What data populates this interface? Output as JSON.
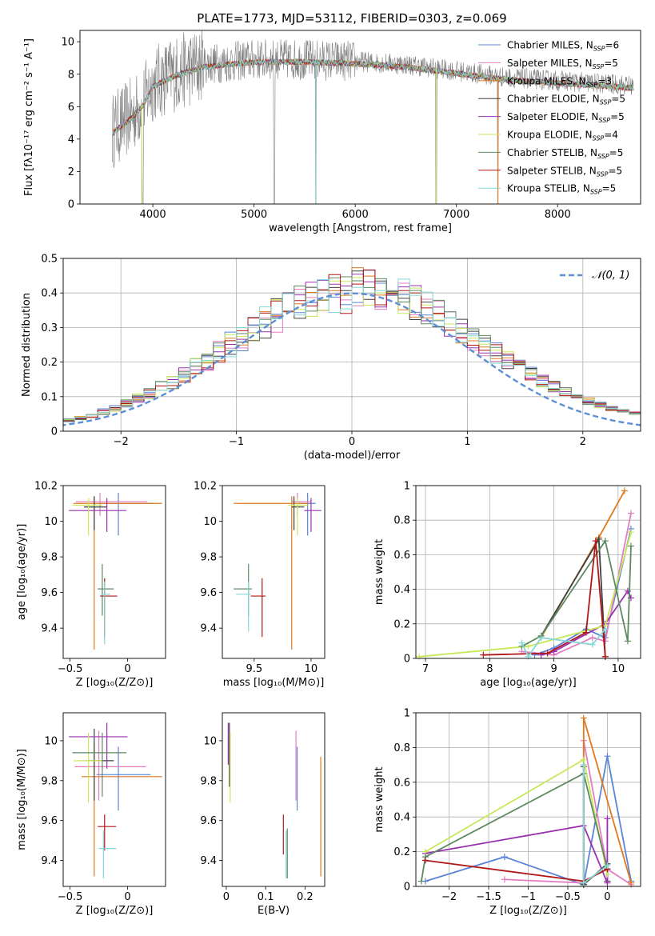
{
  "figure_title": "PLATE=1773, MJD=53112, FIBERID=0303, z=0.069",
  "colors": {
    "chabrier_miles": "#5b84d6",
    "salpeter_miles": "#e37fc0",
    "kroupa_miles": "#e07a20",
    "chabrier_elodie": "#404040",
    "salpeter_elodie": "#9a30b0",
    "kroupa_elodie": "#c8e85a",
    "chabrier_stelib": "#5e8a62",
    "salpeter_stelib": "#b01818",
    "kroupa_stelib": "#86d8d8",
    "spectrum": "#808080",
    "gaussian": "#5b8fd6"
  },
  "chart_data": [
    {
      "id": "spectrum",
      "type": "line",
      "title": "PLATE=1773, MJD=53112, FIBERID=0303, z=0.069",
      "xlabel": "wavelength [Angstrom, rest frame]",
      "ylabel": "Flux [fλ10⁻¹⁷ erg cm⁻² s⁻¹ A⁻¹]",
      "xlim": [
        3280,
        8820
      ],
      "ylim": [
        0,
        10.7
      ],
      "xticks": [
        4000,
        5000,
        6000,
        7000,
        8000
      ],
      "yticks": [
        0,
        2,
        4,
        6,
        8,
        10
      ],
      "grid": false,
      "legend_placement": "right",
      "legend": [
        {
          "label": "Chabrier MILES, N",
          "sub": "SSP",
          "val": "=6",
          "color": "chabrier_miles"
        },
        {
          "label": "Salpeter MILES, N",
          "sub": "SSP",
          "val": "=5",
          "color": "salpeter_miles"
        },
        {
          "label": "Kroupa MILES, N",
          "sub": "SSP",
          "val": "=3",
          "color": "kroupa_miles"
        },
        {
          "label": "Chabrier ELODIE, N",
          "sub": "SSP",
          "val": "=5",
          "color": "chabrier_elodie"
        },
        {
          "label": "Salpeter ELODIE, N",
          "sub": "SSP",
          "val": "=5",
          "color": "salpeter_elodie"
        },
        {
          "label": "Kroupa ELODIE, N",
          "sub": "SSP",
          "val": "=4",
          "color": "kroupa_elodie"
        },
        {
          "label": "Chabrier STELIB, N",
          "sub": "SSP",
          "val": "=5",
          "color": "chabrier_stelib"
        },
        {
          "label": "Salpeter STELIB, N",
          "sub": "SSP",
          "val": "=5",
          "color": "salpeter_stelib"
        },
        {
          "label": "Kroupa STELIB, N",
          "sub": "SSP",
          "val": "=5",
          "color": "kroupa_stelib"
        }
      ],
      "data_range": [
        3600,
        8750
      ],
      "continuum": [
        [
          3600,
          4.5
        ],
        [
          3700,
          5.0
        ],
        [
          3800,
          5.5
        ],
        [
          3900,
          6.2
        ],
        [
          4000,
          7.4
        ],
        [
          4200,
          8.0
        ],
        [
          4500,
          8.6
        ],
        [
          5000,
          8.9
        ],
        [
          5500,
          8.9
        ],
        [
          6000,
          8.8
        ],
        [
          6500,
          8.6
        ],
        [
          7000,
          8.2
        ],
        [
          7500,
          7.8
        ],
        [
          8000,
          7.6
        ],
        [
          8500,
          7.4
        ],
        [
          8750,
          7.3
        ]
      ],
      "dips": [
        [
          3900,
          0.0
        ],
        [
          5200,
          0.0
        ],
        [
          5610,
          0.0
        ],
        [
          6800,
          0.0
        ],
        [
          7410,
          0.0
        ]
      ]
    },
    {
      "id": "residuals",
      "type": "histogram",
      "xlabel": "(data-model)/error",
      "ylabel": "Normed distribution",
      "xlim": [
        -2.5,
        2.5
      ],
      "ylim": [
        0,
        0.5
      ],
      "xticks": [
        -2,
        -1,
        0,
        1,
        2
      ],
      "yticks": [
        0.0,
        0.1,
        0.2,
        0.3,
        0.4,
        0.5
      ],
      "grid": true,
      "legend_placement": "top-right",
      "legend": "𝒩(0, 1)",
      "bin_width": 0.1,
      "gaussian": {
        "mean": 0,
        "sigma": 1
      }
    },
    {
      "id": "age_vs_Z",
      "type": "errorbar",
      "xlabel": "Z [log₁₀(Z/Z⊙)]",
      "ylabel": "age  [log₁₀(age/yr)]",
      "xlim": [
        -0.56,
        0.33
      ],
      "ylim": [
        9.23,
        10.2
      ],
      "xticks": [
        -0.5,
        0.0
      ],
      "yticks": [
        9.4,
        9.6,
        9.8,
        10.0,
        10.2
      ],
      "points": [
        {
          "c": "chabrier_miles",
          "x": -0.08,
          "y": 10.1,
          "xl": -0.27,
          "xh": 0.23,
          "yl": 9.92,
          "yh": 10.16
        },
        {
          "c": "salpeter_miles",
          "x": -0.24,
          "y": 10.11,
          "xl": -0.45,
          "xh": 0.17,
          "yl": 10.03,
          "yh": 10.16
        },
        {
          "c": "kroupa_miles",
          "x": -0.29,
          "y": 10.1,
          "xl": -0.47,
          "xh": 0.3,
          "yl": 9.28,
          "yh": 10.14
        },
        {
          "c": "chabrier_elodie",
          "x": -0.29,
          "y": 10.08,
          "xl": -0.38,
          "xh": -0.18,
          "yl": 9.95,
          "yh": 10.14
        },
        {
          "c": "salpeter_elodie",
          "x": -0.18,
          "y": 10.06,
          "xl": -0.51,
          "xh": -0.01,
          "yl": 9.94,
          "yh": 10.13
        },
        {
          "c": "kroupa_elodie",
          "x": -0.34,
          "y": 10.09,
          "xl": -0.48,
          "xh": -0.22,
          "yl": 9.92,
          "yh": 10.13
        },
        {
          "c": "chabrier_stelib",
          "x": -0.22,
          "y": 9.62,
          "xl": -0.26,
          "xh": -0.12,
          "yl": 9.47,
          "yh": 9.76
        },
        {
          "c": "salpeter_stelib",
          "x": -0.2,
          "y": 9.58,
          "xl": -0.24,
          "xh": -0.09,
          "yl": 9.35,
          "yh": 9.68
        },
        {
          "c": "kroupa_stelib",
          "x": -0.2,
          "y": 9.59,
          "xl": -0.23,
          "xh": -0.15,
          "yl": 9.31,
          "yh": 9.66
        }
      ]
    },
    {
      "id": "age_vs_mass",
      "type": "errorbar",
      "xlabel": "mass [log₁₀(M/M⊙)]",
      "ylabel": "",
      "xlim": [
        9.22,
        10.12
      ],
      "ylim": [
        9.23,
        10.2
      ],
      "xticks": [
        9.5,
        10.0
      ],
      "yticks": [
        9.4,
        9.6,
        9.8,
        10.0,
        10.2
      ],
      "points": [
        {
          "c": "chabrier_miles",
          "x": 9.97,
          "y": 10.1,
          "xl": 9.87,
          "xh": 10.04,
          "yl": 9.92,
          "yh": 10.16
        },
        {
          "c": "salpeter_miles",
          "x": 9.88,
          "y": 10.11,
          "xl": 9.83,
          "xh": 10.0,
          "yl": 10.03,
          "yh": 10.16
        },
        {
          "c": "kroupa_miles",
          "x": 9.83,
          "y": 10.1,
          "xl": 9.32,
          "xh": 9.98,
          "yl": 9.28,
          "yh": 10.14
        },
        {
          "c": "chabrier_elodie",
          "x": 9.85,
          "y": 10.08,
          "xl": 9.83,
          "xh": 9.94,
          "yl": 9.95,
          "yh": 10.14
        },
        {
          "c": "salpeter_elodie",
          "x": 10.0,
          "y": 10.06,
          "xl": 9.94,
          "xh": 10.09,
          "yl": 9.94,
          "yh": 10.13
        },
        {
          "c": "kroupa_elodie",
          "x": 9.88,
          "y": 10.09,
          "xl": 9.8,
          "xh": 9.97,
          "yl": 9.92,
          "yh": 10.13
        },
        {
          "c": "chabrier_stelib",
          "x": 9.45,
          "y": 9.62,
          "xl": 9.32,
          "xh": 9.48,
          "yl": 9.47,
          "yh": 9.76
        },
        {
          "c": "salpeter_stelib",
          "x": 9.57,
          "y": 9.58,
          "xl": 9.47,
          "xh": 9.6,
          "yl": 9.35,
          "yh": 9.68
        },
        {
          "c": "kroupa_stelib",
          "x": 9.45,
          "y": 9.59,
          "xl": 9.34,
          "xh": 9.47,
          "yl": 9.38,
          "yh": 9.66
        }
      ]
    },
    {
      "id": "weight_vs_age",
      "type": "line",
      "xlabel": "age  [log₁₀(age/yr)]",
      "ylabel": "mass weight",
      "xlim": [
        6.85,
        10.35
      ],
      "ylim": [
        0,
        1.0
      ],
      "xticks": [
        7,
        8,
        9,
        10
      ],
      "yticks": [
        0.0,
        0.2,
        0.4,
        0.6,
        0.8,
        1.0
      ],
      "grid": true,
      "series": [
        {
          "c": "chabrier_miles",
          "x": [
            8.7,
            9.0,
            9.5,
            9.8,
            10.2
          ],
          "y": [
            0.02,
            0.06,
            0.17,
            0.12,
            0.75
          ]
        },
        {
          "c": "salpeter_miles",
          "x": [
            8.5,
            9.0,
            9.6,
            9.8,
            10.2
          ],
          "y": [
            0.04,
            0.02,
            0.12,
            0.1,
            0.84
          ]
        },
        {
          "c": "kroupa_miles",
          "x": [
            8.8,
            9.7,
            10.1
          ],
          "y": [
            0.12,
            0.7,
            0.97
          ]
        },
        {
          "c": "chabrier_elodie",
          "x": [
            8.8,
            9.7,
            9.8
          ],
          "y": [
            0.13,
            0.69,
            0.01
          ]
        },
        {
          "c": "salpeter_elodie",
          "x": [
            8.8,
            9.0,
            9.8,
            10.15,
            10.2
          ],
          "y": [
            0.02,
            0.04,
            0.2,
            0.39,
            0.35
          ]
        },
        {
          "c": "kroupa_elodie",
          "x": [
            6.9,
            8.6,
            9.8,
            10.2
          ],
          "y": [
            0.01,
            0.07,
            0.19,
            0.73
          ]
        },
        {
          "c": "chabrier_stelib",
          "x": [
            8.5,
            8.8,
            9.8,
            10.15,
            10.2
          ],
          "y": [
            0.07,
            0.13,
            0.68,
            0.1,
            0.65
          ]
        },
        {
          "c": "salpeter_stelib",
          "x": [
            7.9,
            8.9,
            9.5,
            9.65,
            9.8
          ],
          "y": [
            0.02,
            0.03,
            0.15,
            0.68,
            0.01
          ]
        },
        {
          "c": "kroupa_stelib",
          "x": [
            8.5,
            8.6,
            8.8,
            9.6,
            9.8
          ],
          "y": [
            0.09,
            0.01,
            0.12,
            0.08,
            0.17
          ]
        }
      ]
    },
    {
      "id": "mass_vs_Z",
      "type": "errorbar",
      "xlabel": "Z [log₁₀(Z/Z⊙)]",
      "ylabel": "mass [log₁₀(M/M⊙)]",
      "xlim": [
        -0.56,
        0.33
      ],
      "ylim": [
        9.27,
        10.14
      ],
      "xticks": [
        -0.5,
        0.0
      ],
      "yticks": [
        9.4,
        9.6,
        9.8,
        10.0
      ],
      "points": [
        {
          "c": "chabrier_miles",
          "x": -0.08,
          "y": 9.83,
          "xl": -0.27,
          "xh": 0.2,
          "yl": 9.65,
          "yh": 9.97
        },
        {
          "c": "salpeter_miles",
          "x": -0.25,
          "y": 9.87,
          "xl": -0.46,
          "xh": 0.16,
          "yl": 9.7,
          "yh": 10.05
        },
        {
          "c": "kroupa_miles",
          "x": -0.29,
          "y": 9.82,
          "xl": -0.4,
          "xh": 0.3,
          "yl": 9.32,
          "yh": 9.99
        },
        {
          "c": "chabrier_elodie",
          "x": -0.29,
          "y": 9.9,
          "xl": -0.36,
          "xh": -0.12,
          "yl": 9.7,
          "yh": 10.06
        },
        {
          "c": "salpeter_elodie",
          "x": -0.18,
          "y": 10.02,
          "xl": -0.51,
          "xh": 0.0,
          "yl": 9.86,
          "yh": 10.09
        },
        {
          "c": "kroupa_elodie",
          "x": -0.34,
          "y": 9.9,
          "xl": -0.47,
          "xh": -0.22,
          "yl": 9.69,
          "yh": 10.04
        },
        {
          "c": "chabrier_stelib",
          "x": -0.22,
          "y": 9.94,
          "xl": -0.48,
          "xh": -0.01,
          "yl": 9.72,
          "yh": 10.04
        },
        {
          "c": "salpeter_stelib",
          "x": -0.2,
          "y": 9.57,
          "xl": -0.26,
          "xh": -0.1,
          "yl": 9.45,
          "yh": 9.63
        },
        {
          "c": "kroupa_stelib",
          "x": -0.21,
          "y": 9.46,
          "xl": -0.25,
          "xh": -0.1,
          "yl": 9.31,
          "yh": 9.55
        }
      ]
    },
    {
      "id": "mass_vs_ebv",
      "type": "errorbar",
      "xlabel": "E(B-V)",
      "ylabel": "",
      "xlim": [
        -0.01,
        0.25
      ],
      "ylim": [
        9.27,
        10.14
      ],
      "xticks": [
        0.0,
        0.1,
        0.2
      ],
      "yticks": [
        9.4,
        9.6,
        9.8,
        10.0
      ],
      "points": [
        {
          "c": "chabrier_miles",
          "x": 0.18,
          "yl": 9.65,
          "yh": 9.97
        },
        {
          "c": "salpeter_miles",
          "x": 0.177,
          "yl": 9.7,
          "yh": 10.05
        },
        {
          "c": "kroupa_miles",
          "x": 0.24,
          "yl": 9.32,
          "yh": 9.92
        },
        {
          "c": "chabrier_elodie",
          "x": 0.008,
          "yl": 9.77,
          "yh": 10.09
        },
        {
          "c": "salpeter_elodie",
          "x": 0.005,
          "yl": 9.88,
          "yh": 10.09
        },
        {
          "c": "kroupa_elodie",
          "x": 0.01,
          "yl": 9.69,
          "yh": 10.04
        },
        {
          "c": "chabrier_stelib",
          "x": 0.155,
          "yl": 9.31,
          "yh": 9.56
        },
        {
          "c": "salpeter_stelib",
          "x": 0.145,
          "yl": 9.43,
          "yh": 9.63
        },
        {
          "c": "kroupa_stelib",
          "x": 0.152,
          "yl": 9.31,
          "yh": 9.55
        }
      ]
    },
    {
      "id": "weight_vs_Z",
      "type": "line",
      "xlabel": "Z [log₁₀(Z/Z⊙)]",
      "ylabel": "mass weight",
      "xlim": [
        -2.42,
        0.42
      ],
      "ylim": [
        0,
        1.0
      ],
      "xticks": [
        -2.0,
        -1.5,
        -1.0,
        -0.5,
        0.0
      ],
      "yticks": [
        0.0,
        0.2,
        0.4,
        0.6,
        0.8,
        1.0
      ],
      "grid": true,
      "series": [
        {
          "c": "chabrier_miles",
          "x": [
            -2.3,
            -1.3,
            -0.3,
            0.0,
            0.3
          ],
          "y": [
            0.03,
            0.17,
            0.01,
            0.75,
            0.03
          ]
        },
        {
          "c": "salpeter_miles",
          "x": [
            -1.3,
            -0.3,
            -0.3,
            0.0,
            0.3
          ],
          "y": [
            0.04,
            0.02,
            0.84,
            0.1,
            0.01
          ]
        },
        {
          "c": "kroupa_miles",
          "x": [
            -0.3,
            -0.3,
            0.3
          ],
          "y": [
            0.01,
            0.97,
            0.02
          ]
        },
        {
          "c": "chabrier_elodie",
          "x": [
            -0.3,
            -0.3,
            0.0,
            0.0
          ],
          "y": [
            0.69,
            0.01,
            0.13,
            0.03
          ]
        },
        {
          "c": "salpeter_elodie",
          "x": [
            -2.3,
            -0.3,
            0.0,
            0.0
          ],
          "y": [
            0.19,
            0.35,
            0.02,
            0.39
          ]
        },
        {
          "c": "kroupa_elodie",
          "x": [
            -2.3,
            -0.3,
            0.0
          ],
          "y": [
            0.2,
            0.73,
            0.07
          ]
        },
        {
          "c": "chabrier_stelib",
          "x": [
            -2.35,
            -2.3,
            -0.3,
            0.0
          ],
          "y": [
            0.03,
            0.17,
            0.65,
            0.1
          ]
        },
        {
          "c": "salpeter_stelib",
          "x": [
            -2.3,
            -0.3,
            0.0
          ],
          "y": [
            0.15,
            0.03,
            0.1
          ]
        },
        {
          "c": "kroupa_stelib",
          "x": [
            -0.3,
            -0.3,
            0.0
          ],
          "y": [
            0.7,
            0.02,
            0.12
          ]
        }
      ]
    }
  ]
}
